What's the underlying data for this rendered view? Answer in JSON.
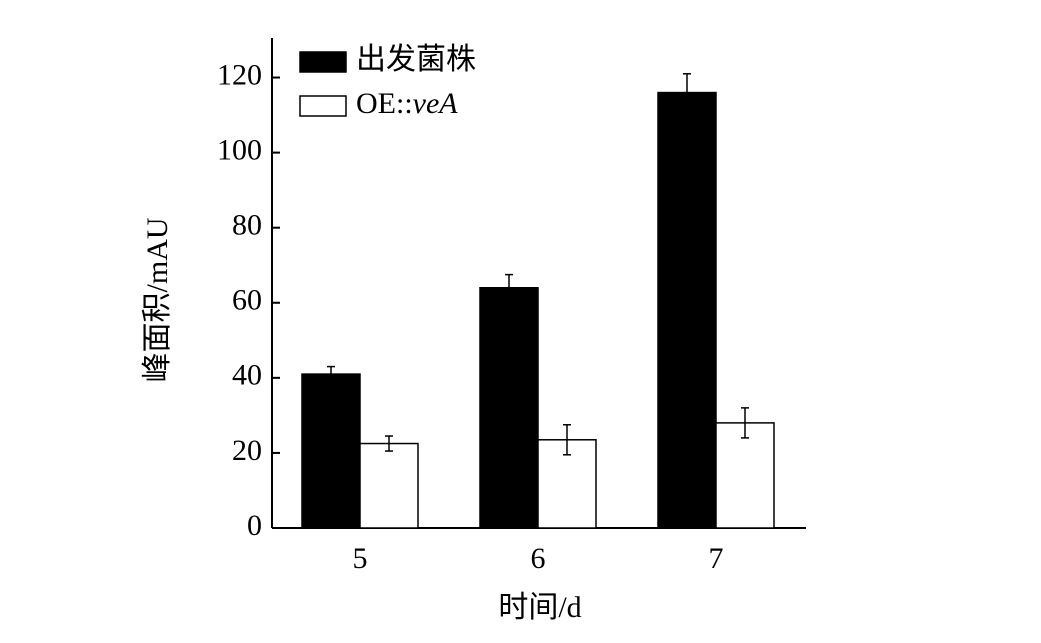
{
  "chart_data": {
    "type": "bar",
    "x_label": "时间/d",
    "y_label": "峰面积/mAU",
    "categories": [
      "5",
      "6",
      "7"
    ],
    "series": [
      {
        "name": "出发菌株",
        "color": "#000000",
        "values": [
          41,
          64,
          116
        ],
        "errors": [
          2,
          3.5,
          5
        ]
      },
      {
        "name": "OE::veA",
        "color": "#ffffff",
        "values": [
          22.5,
          23.5,
          28
        ],
        "errors": [
          2,
          4,
          4
        ]
      }
    ],
    "ylim": [
      0,
      130
    ],
    "yticks": [
      0,
      20,
      40,
      60,
      80,
      100,
      120
    ],
    "legend": "upper left"
  }
}
